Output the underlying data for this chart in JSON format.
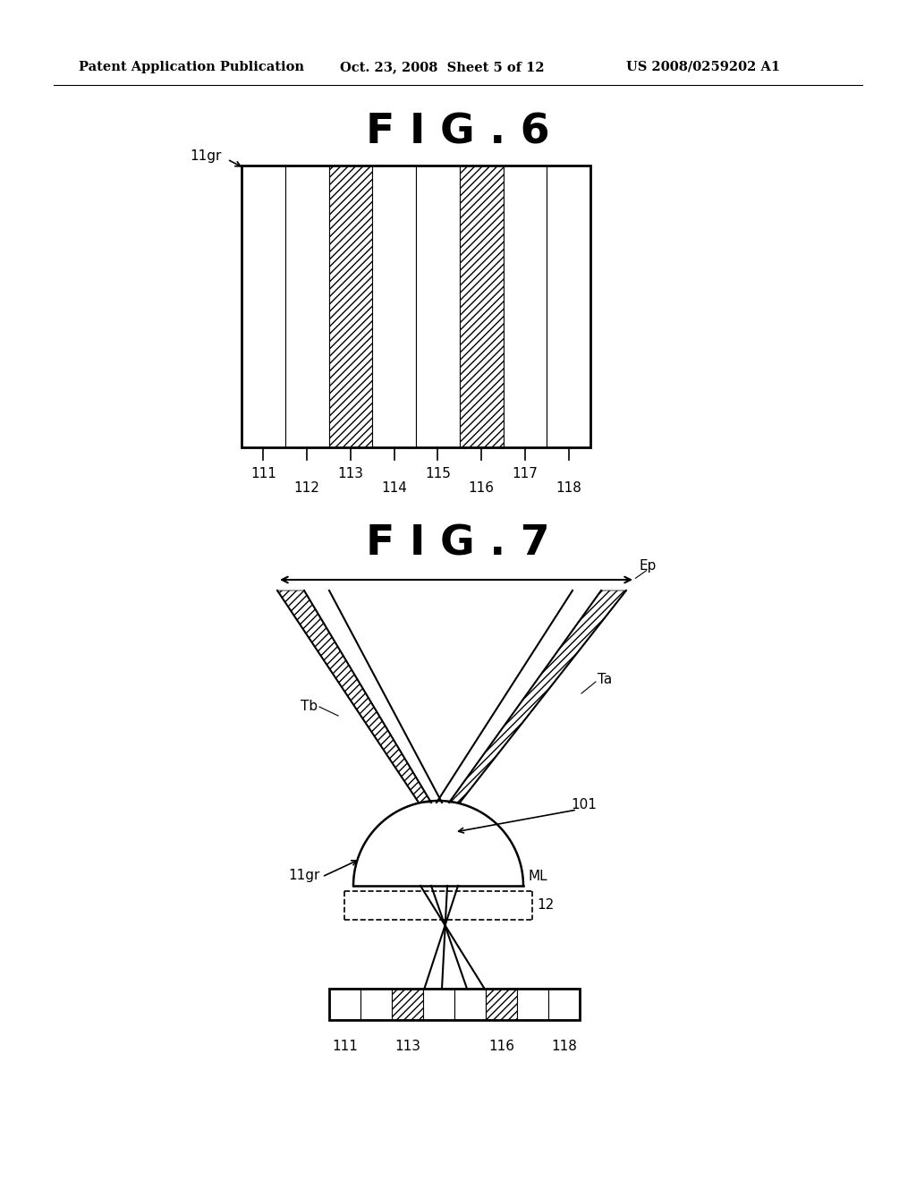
{
  "background_color": "#ffffff",
  "header_text": "Patent Application Publication",
  "header_date": "Oct. 23, 2008  Sheet 5 of 12",
  "header_patent": "US 2008/0259202 A1",
  "fig6_title": "F I G . 6",
  "fig7_title": "F I G . 7",
  "fig6_label_11gr": "11gr",
  "fig6_labels": [
    "111",
    "112",
    "113",
    "114",
    "115",
    "116",
    "117",
    "118"
  ],
  "fig7_labels": [
    "111",
    "113",
    "116",
    "118"
  ],
  "fig7_label_11gr": "11gr",
  "fig7_label_ML": "ML",
  "fig7_label_12": "12",
  "fig7_label_Ep": "Ep",
  "fig7_label_Ta": "Ta",
  "fig7_label_Tb": "Tb",
  "fig7_label_101": "101",
  "line_color": "#000000"
}
